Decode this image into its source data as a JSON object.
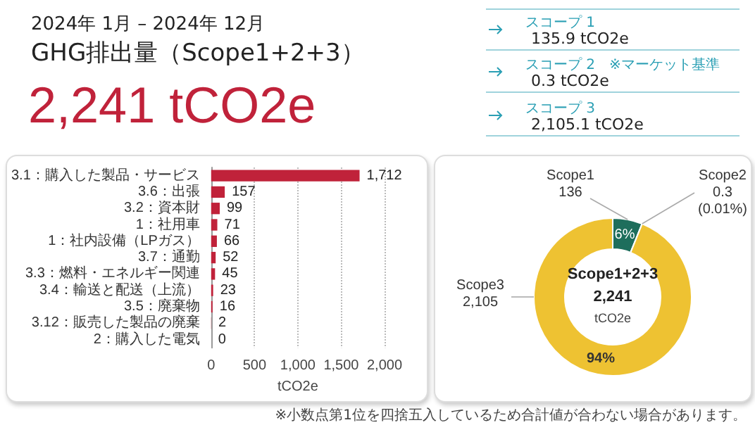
{
  "chart_data": [
    {
      "type": "other",
      "title": "GHG排出量（Scope1+2+3）",
      "subtitle": "2024年 1月 – 2024年 12月",
      "annotations": [
        "2,241 tCO2e",
        "スコープ 1",
        "135.9 tCO2e",
        "スコープ 2　※マーケット基準",
        "0.3 tCO2e",
        "スコープ 3",
        "2,105.1 tCO2e",
        "※小数点第1位を四捨五入しているため合計値が合わない場合があります。"
      ]
    },
    {
      "type": "bar",
      "orientation": "horizontal",
      "categories": [
        "3.1：購入した製品・サービス",
        "3.6：出張",
        "3.2：資本財",
        "1：社用車",
        "1：社内設備（LPガス）",
        "3.7：通勤",
        "3.3：燃料・エネルギー関連",
        "3.4：輸送と配送（上流）",
        "3.5：廃棄物",
        "3.12：販売した製品の廃棄",
        "2：購入した電気"
      ],
      "values": [
        1712,
        157,
        99,
        71,
        66,
        52,
        45,
        23,
        16,
        2,
        0
      ],
      "value_labels": [
        "1,712",
        "157",
        "99",
        "71",
        "66",
        "52",
        "45",
        "23",
        "16",
        "2",
        "0"
      ],
      "color": "#c0223a",
      "xlabel": "tCO2e",
      "xlim": [
        0,
        2000
      ],
      "xticks": [
        0,
        500,
        {
          "value": 1000,
          "label": "1,000"
        },
        {
          "value": 1500,
          "label": "1,500"
        },
        {
          "value": 2000,
          "label": "2,000"
        }
      ],
      "grid": "x"
    },
    {
      "type": "donut",
      "title": "Scope1+2+3",
      "annotations": [
        "2,241",
        "tCO2e",
        "6%",
        "(0.01%)",
        "94%"
      ],
      "categories": [
        "Scope1",
        "Scope2",
        "Scope3"
      ],
      "values": [
        136,
        0.3,
        2105
      ],
      "colors": [
        "#1e6e5c",
        "#1e6e5c",
        "#eec232"
      ],
      "value_labels": [
        "136",
        "0.3",
        "2,105"
      ]
    }
  ]
}
